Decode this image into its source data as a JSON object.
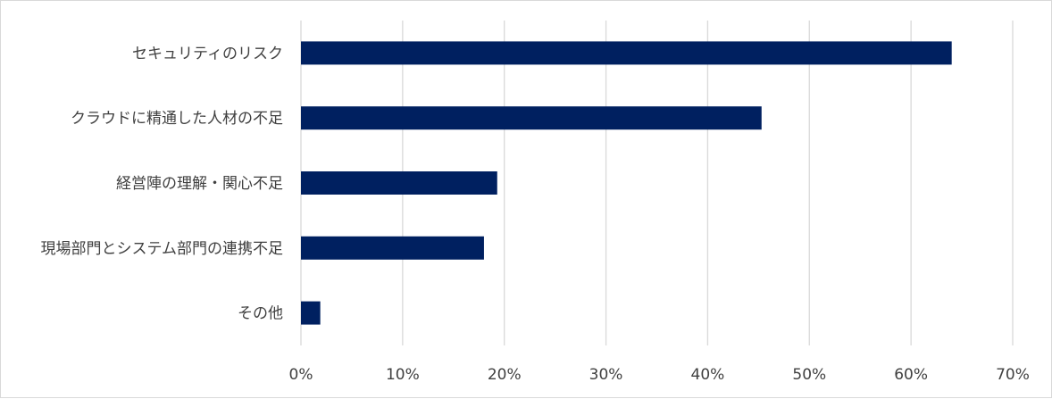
{
  "chart_data": {
    "type": "bar",
    "orientation": "horizontal",
    "categories": [
      "セキュリティのリスク",
      "クラウドに精通した人材の不足",
      "経営陣の理解・関心不足",
      "現場部門とシステム部門の連携不足",
      "その他"
    ],
    "values": [
      64,
      45.3,
      19.3,
      18,
      1.9
    ],
    "xlim": [
      0,
      70
    ],
    "xticks": [
      "0%",
      "10%",
      "20%",
      "30%",
      "40%",
      "50%",
      "60%",
      "70%"
    ],
    "grid": "vertical",
    "bar_color": "#002060",
    "grid_color": "#d9d9d9"
  }
}
